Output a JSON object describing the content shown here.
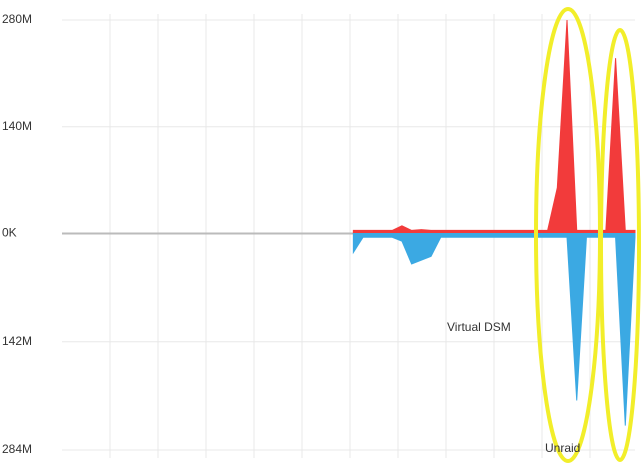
{
  "chart_data": {
    "type": "area",
    "categories": [
      null,
      null,
      null,
      null,
      null,
      null,
      null,
      null,
      null,
      null,
      null,
      null,
      null,
      null,
      null,
      null,
      null,
      null,
      null,
      null,
      null,
      null,
      null,
      null,
      null,
      null,
      null,
      null,
      null,
      null,
      null,
      null,
      null,
      null,
      null,
      null,
      null,
      null,
      null,
      null,
      null,
      null,
      null,
      null,
      null,
      null,
      null,
      null,
      null,
      null,
      null,
      null,
      null,
      null,
      null,
      null,
      null,
      null,
      null,
      null
    ],
    "series": [
      {
        "color": "#f23b3b",
        "values": [
          null,
          null,
          null,
          null,
          null,
          null,
          null,
          null,
          null,
          null,
          null,
          null,
          null,
          null,
          null,
          null,
          null,
          null,
          null,
          null,
          null,
          null,
          null,
          null,
          null,
          null,
          null,
          null,
          null,
          null,
          4,
          4,
          4,
          4,
          4,
          10,
          4,
          5,
          4,
          4,
          4,
          4,
          4,
          4,
          4,
          4,
          4,
          4,
          4,
          4,
          4,
          60,
          280,
          4,
          4,
          4,
          4,
          230,
          4,
          4
        ]
      },
      {
        "color": "#3ba9e3",
        "values": [
          null,
          null,
          null,
          null,
          null,
          null,
          null,
          null,
          null,
          null,
          null,
          null,
          null,
          null,
          null,
          null,
          null,
          null,
          null,
          null,
          null,
          null,
          null,
          null,
          null,
          null,
          null,
          null,
          null,
          null,
          -25,
          -5,
          -5,
          -5,
          -5,
          -10,
          -40,
          -35,
          -30,
          -5,
          -5,
          -5,
          -5,
          -5,
          -5,
          -5,
          -5,
          -5,
          -5,
          -5,
          -5,
          -5,
          -5,
          -219,
          -5,
          -5,
          -5,
          -5,
          -252,
          -5
        ]
      }
    ],
    "ylim": [
      -284,
      280
    ],
    "yticks": [
      {
        "value": 280,
        "label": "280M"
      },
      {
        "value": 140,
        "label": "140M"
      },
      {
        "value": 0,
        "label": "0K"
      },
      {
        "value": -142,
        "label": "142M"
      },
      {
        "value": -284,
        "label": "284M"
      }
    ],
    "grid": true,
    "annotations": [
      "Virtual DSM",
      "Unraid"
    ]
  }
}
